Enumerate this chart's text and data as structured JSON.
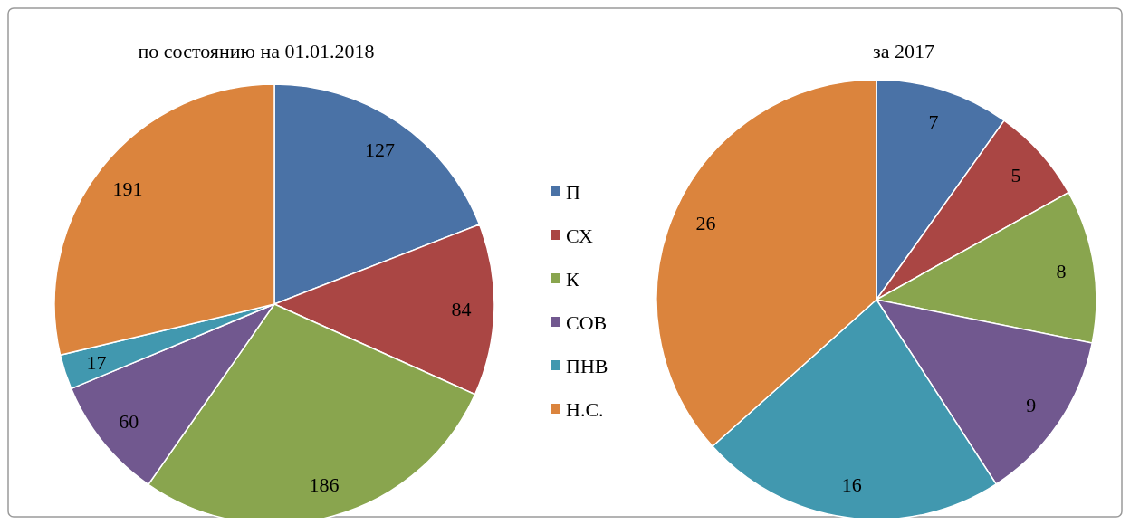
{
  "chart_data": [
    {
      "type": "pie",
      "title": "по состоянию на 01.01.2018",
      "categories": [
        "П",
        "СХ",
        "К",
        "СОВ",
        "ПНВ",
        "Н.С."
      ],
      "values": [
        127,
        84,
        186,
        60,
        17,
        191
      ],
      "colors": [
        "#4a72a6",
        "#aa4644",
        "#89a54e",
        "#71588f",
        "#4198af",
        "#db843d"
      ],
      "data_labels": true,
      "legend": "right"
    },
    {
      "type": "pie",
      "title": "за 2017",
      "categories": [
        null,
        null,
        null,
        null,
        null,
        null
      ],
      "values": [
        7,
        5,
        8,
        9,
        16,
        26
      ],
      "colors": [
        "#4a72a6",
        "#aa4644",
        "#89a54e",
        "#71588f",
        "#4198af",
        "#db843d"
      ],
      "data_labels": true
    }
  ]
}
